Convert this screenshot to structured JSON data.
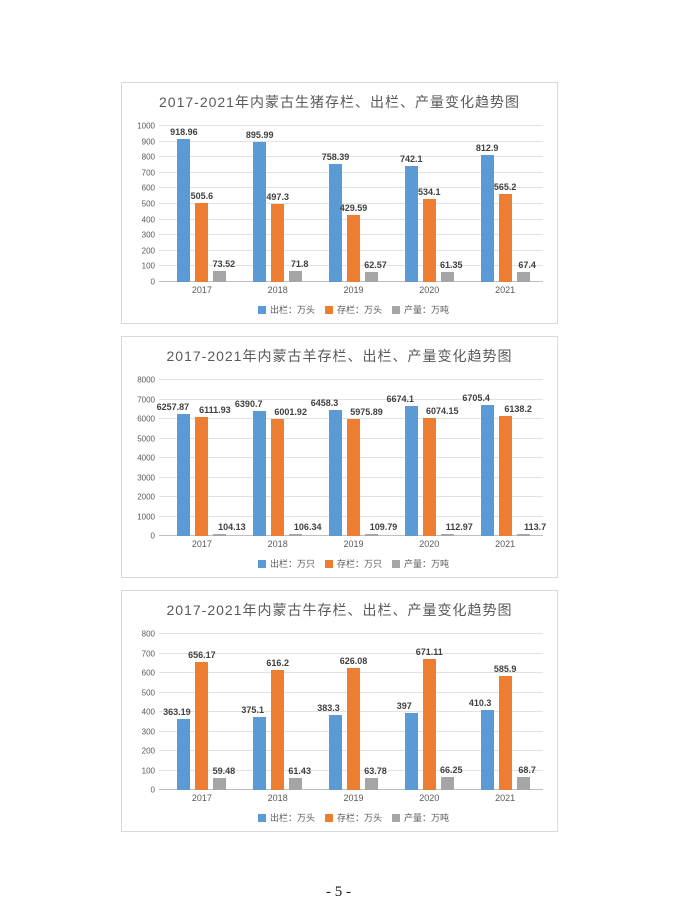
{
  "page": {
    "number_label": "- 5 -"
  },
  "chart_data": [
    {
      "type": "bar",
      "title": "2017-2021年内蒙古生猪存栏、出栏、产量变化趋势图",
      "categories": [
        "2017",
        "2018",
        "2019",
        "2020",
        "2021"
      ],
      "series": [
        {
          "name": "出栏：万头",
          "color": "#5B9BD5",
          "values": [
            918.96,
            895.99,
            758.39,
            742.1,
            812.9
          ]
        },
        {
          "name": "存栏：万头",
          "color": "#ED7D31",
          "values": [
            505.6,
            497.3,
            429.59,
            534.1,
            565.2
          ]
        },
        {
          "name": "产量：万吨",
          "color": "#A5A5A5",
          "values": [
            73.52,
            71.8,
            62.57,
            61.35,
            67.4
          ]
        }
      ],
      "xlabel": "",
      "ylabel": "",
      "ylim": [
        0,
        1000
      ],
      "ystep": 100,
      "grid": true,
      "legend_position": "bottom"
    },
    {
      "type": "bar",
      "title": "2017-2021年内蒙古羊存栏、出栏、产量变化趋势图",
      "categories": [
        "2017",
        "2018",
        "2019",
        "2020",
        "2021"
      ],
      "series": [
        {
          "name": "出栏：万只",
          "color": "#5B9BD5",
          "values": [
            6257.87,
            6390.7,
            6458.3,
            6674.1,
            6705.4
          ]
        },
        {
          "name": "存栏：万只",
          "color": "#ED7D31",
          "values": [
            6111.93,
            6001.92,
            5975.89,
            6074.15,
            6138.2
          ]
        },
        {
          "name": "产量：万吨",
          "color": "#A5A5A5",
          "values": [
            104.13,
            106.34,
            109.79,
            112.97,
            113.7
          ]
        }
      ],
      "xlabel": "",
      "ylabel": "",
      "ylim": [
        0,
        8000
      ],
      "ystep": 1000,
      "grid": true,
      "legend_position": "bottom"
    },
    {
      "type": "bar",
      "title": "2017-2021年内蒙古牛存栏、出栏、产量变化趋势图",
      "categories": [
        "2017",
        "2018",
        "2019",
        "2020",
        "2021"
      ],
      "series": [
        {
          "name": "出栏：万头",
          "color": "#5B9BD5",
          "values": [
            363.19,
            375.1,
            383.3,
            397,
            410.3
          ]
        },
        {
          "name": "存栏：万头",
          "color": "#ED7D31",
          "values": [
            656.17,
            616.2,
            626.08,
            671.11,
            585.9
          ]
        },
        {
          "name": "产量：万吨",
          "color": "#A5A5A5",
          "values": [
            59.48,
            61.43,
            63.78,
            66.25,
            68.7
          ]
        }
      ],
      "xlabel": "",
      "ylabel": "",
      "ylim": [
        0,
        800
      ],
      "ystep": 100,
      "grid": true,
      "legend_position": "bottom"
    }
  ]
}
